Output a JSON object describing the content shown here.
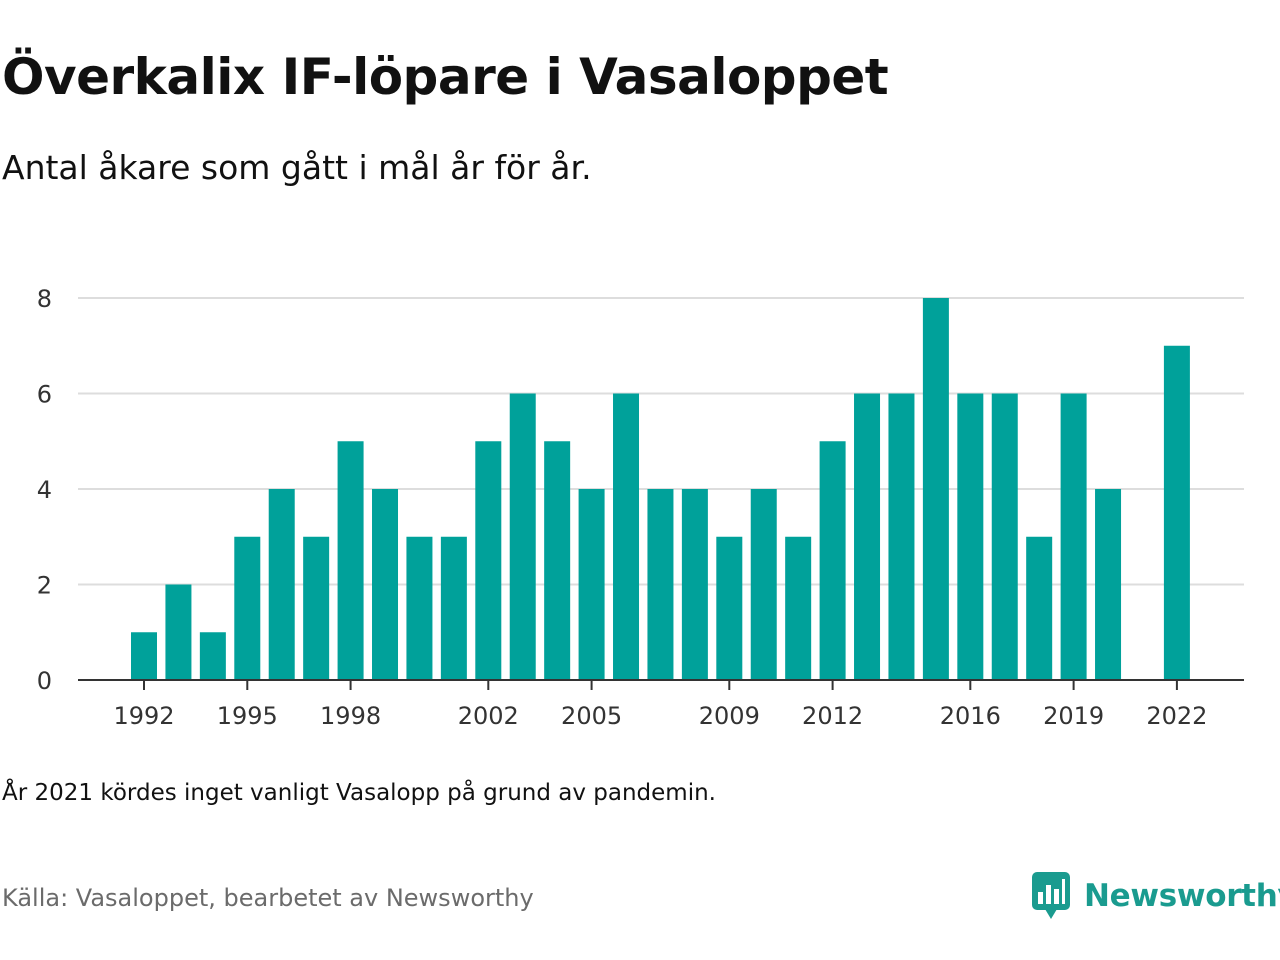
{
  "header": {
    "title": "Överkalix IF-löpare i Vasaloppet",
    "subtitle": "Antal åkare som gått i mål år för år."
  },
  "footer": {
    "note": "År 2021 kördes inget vanligt Vasalopp på grund av pandemin.",
    "source": "Källa: Vasaloppet, bearbetet av Newsworthy",
    "brand": "Newsworthy"
  },
  "colors": {
    "bar": "#00a19a",
    "grid": "#dddddd",
    "axis": "#333333",
    "brand": "#1a9b8f"
  },
  "icons": {
    "brand_logo": "bar-chart-speech-bubble-icon"
  },
  "chart_data": {
    "type": "bar",
    "title": "Överkalix IF-löpare i Vasaloppet",
    "subtitle": "Antal åkare som gått i mål år för år.",
    "xlabel": "",
    "ylabel": "",
    "ylim": [
      0,
      8
    ],
    "yticks": [
      0,
      2,
      4,
      6,
      8
    ],
    "xticks": [
      1992,
      1995,
      1998,
      2002,
      2005,
      2009,
      2012,
      2016,
      2019,
      2022
    ],
    "grid": true,
    "legend": "none",
    "categories": [
      1992,
      1993,
      1994,
      1995,
      1996,
      1997,
      1998,
      1999,
      2000,
      2001,
      2002,
      2003,
      2004,
      2005,
      2006,
      2007,
      2008,
      2009,
      2010,
      2011,
      2012,
      2013,
      2014,
      2015,
      2016,
      2017,
      2018,
      2019,
      2020,
      2021,
      2022
    ],
    "values": [
      1,
      2,
      1,
      3,
      4,
      3,
      5,
      4,
      3,
      3,
      5,
      6,
      5,
      4,
      6,
      4,
      4,
      3,
      4,
      3,
      5,
      6,
      6,
      8,
      6,
      6,
      3,
      6,
      4,
      null,
      7
    ]
  }
}
